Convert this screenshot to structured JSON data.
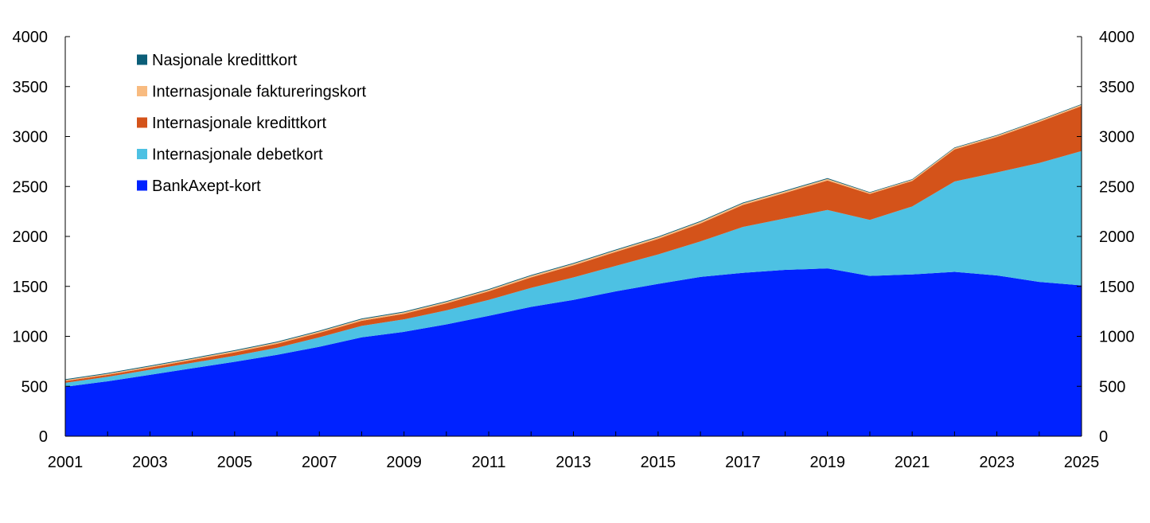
{
  "chart_data": {
    "type": "area",
    "stacked": true,
    "title": "",
    "xlabel": "",
    "ylabel": "",
    "x": [
      2001,
      2002,
      2003,
      2004,
      2005,
      2006,
      2007,
      2008,
      2009,
      2010,
      2011,
      2012,
      2013,
      2014,
      2015,
      2016,
      2017,
      2018,
      2019,
      2020,
      2021,
      2022,
      2023,
      2024,
      2025
    ],
    "x_tick_labels": [
      "2001",
      "2003",
      "2005",
      "2007",
      "2009",
      "2011",
      "2013",
      "2015",
      "2017",
      "2019",
      "2021",
      "2023",
      "2025"
    ],
    "ylim": [
      0,
      4000
    ],
    "y_ticks": [
      0,
      500,
      1000,
      1500,
      2000,
      2500,
      3000,
      3500,
      4000
    ],
    "y_tick_labels": [
      "0",
      "500",
      "1000",
      "1500",
      "2000",
      "2500",
      "3000",
      "3500",
      "4000"
    ],
    "secondary_y_axis": true,
    "grid": false,
    "legend_position": "top-left",
    "series": [
      {
        "name": "BankAxept-kort",
        "color": "#0022ff",
        "values": [
          495,
          550,
          615,
          680,
          745,
          815,
          895,
          990,
          1045,
          1120,
          1205,
          1295,
          1365,
          1450,
          1525,
          1595,
          1635,
          1665,
          1680,
          1605,
          1620,
          1645,
          1610,
          1545,
          1510
        ]
      },
      {
        "name": "Internasjonale debetkort",
        "color": "#4dc1e3",
        "values": [
          40,
          45,
          50,
          55,
          60,
          70,
          95,
          115,
          125,
          140,
          160,
          190,
          225,
          255,
          295,
          355,
          460,
          515,
          585,
          560,
          680,
          905,
          1030,
          1190,
          1345
        ]
      },
      {
        "name": "Internasjonale kredittkort",
        "color": "#d4531a",
        "values": [
          18,
          20,
          22,
          28,
          35,
          40,
          45,
          50,
          55,
          70,
          85,
          105,
          120,
          140,
          155,
          180,
          220,
          255,
          295,
          260,
          255,
          320,
          355,
          410,
          450
        ]
      },
      {
        "name": "Internasjonale faktureringskort",
        "color": "#f8bb80",
        "values": [
          10,
          10,
          12,
          12,
          14,
          14,
          14,
          15,
          15,
          15,
          15,
          16,
          16,
          16,
          16,
          16,
          16,
          16,
          16,
          12,
          12,
          14,
          14,
          14,
          14
        ]
      },
      {
        "name": "Nasjonale kredittkort",
        "color": "#0b5e78",
        "values": [
          8,
          8,
          8,
          8,
          8,
          8,
          8,
          8,
          8,
          8,
          8,
          8,
          8,
          8,
          8,
          8,
          8,
          8,
          8,
          6,
          6,
          6,
          6,
          6,
          6
        ]
      }
    ],
    "legend_order": [
      "Nasjonale kredittkort",
      "Internasjonale faktureringskort",
      "Internasjonale kredittkort",
      "Internasjonale debetkort",
      "BankAxept-kort"
    ]
  }
}
